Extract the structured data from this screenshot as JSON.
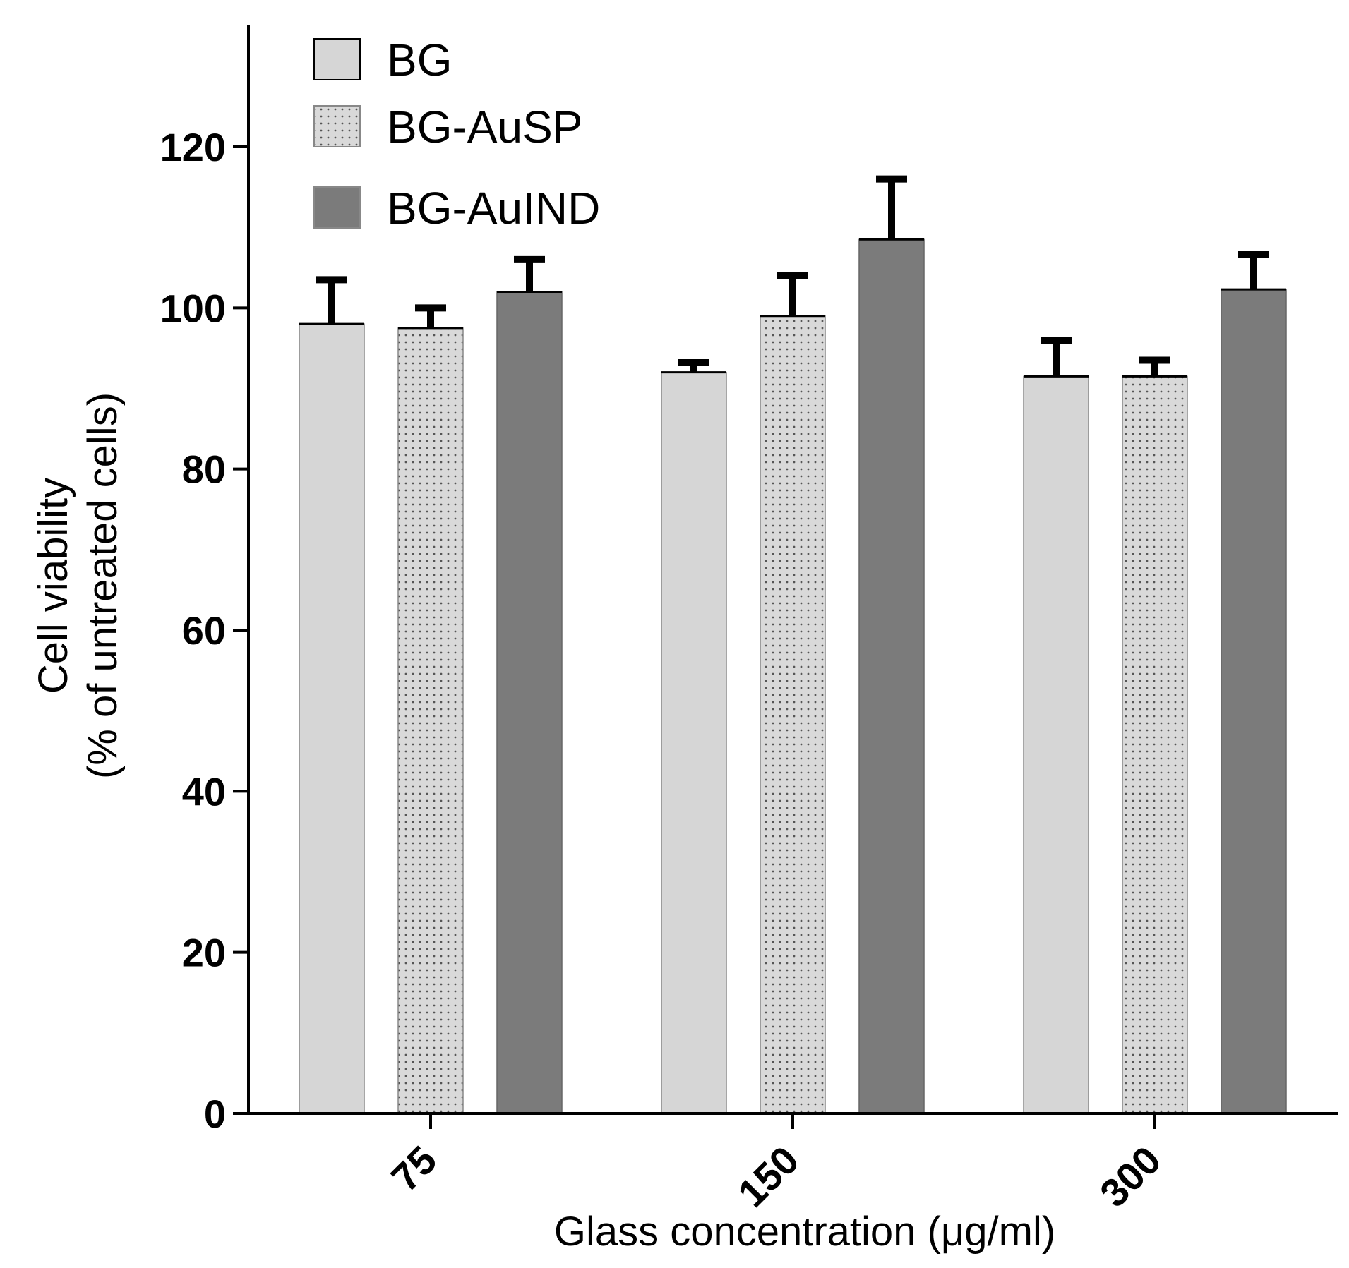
{
  "chart_data": {
    "type": "bar",
    "title": "",
    "xlabel": "Glass concentration (μg/ml)",
    "ylabel_line1": "Cell viability",
    "ylabel_line2": "(% of untreated cells)",
    "categories": [
      "75",
      "150",
      "300"
    ],
    "ylim": [
      0,
      135
    ],
    "yticks": [
      "0",
      "20",
      "40",
      "60",
      "80",
      "100",
      "120"
    ],
    "legend_position": "top-left",
    "series": [
      {
        "name": "BG",
        "values": [
          98,
          92,
          91.5
        ],
        "errors": [
          5.5,
          1.2,
          4.5
        ],
        "color": "#d6d6d6",
        "pattern": "solid"
      },
      {
        "name": "BG-AuSP",
        "values": [
          97.5,
          99,
          91.5
        ],
        "errors": [
          2.5,
          5,
          2
        ],
        "color": "#d3d3d3",
        "pattern": "dotted"
      },
      {
        "name": "BG-AuIND",
        "values": [
          102,
          108.5,
          102.3
        ],
        "errors": [
          4,
          7.5,
          4.3
        ],
        "color": "#7b7b7b",
        "pattern": "solid"
      }
    ]
  }
}
